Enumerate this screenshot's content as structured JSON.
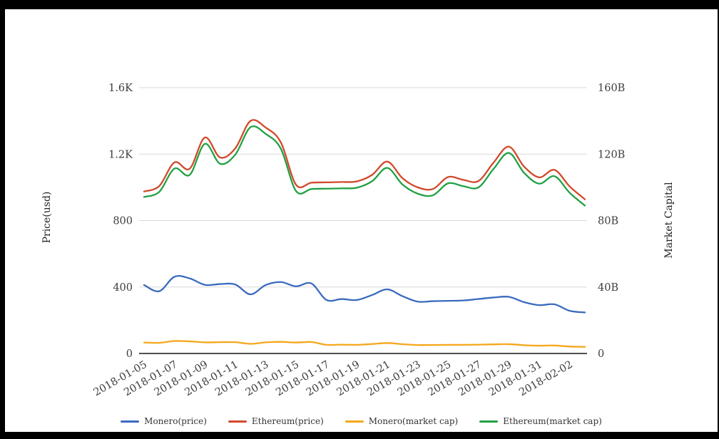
{
  "frame": {
    "background": "#000000",
    "canvas_background": "#ffffff"
  },
  "chart_data": {
    "type": "line",
    "title": "",
    "grid": true,
    "legend_position": "bottom",
    "x": [
      "2018-01-05",
      "2018-01-06",
      "2018-01-07",
      "2018-01-08",
      "2018-01-09",
      "2018-01-10",
      "2018-01-11",
      "2018-01-12",
      "2018-01-13",
      "2018-01-14",
      "2018-01-15",
      "2018-01-16",
      "2018-01-17",
      "2018-01-18",
      "2018-01-19",
      "2018-01-20",
      "2018-01-21",
      "2018-01-22",
      "2018-01-23",
      "2018-01-24",
      "2018-01-25",
      "2018-01-26",
      "2018-01-27",
      "2018-01-28",
      "2018-01-29",
      "2018-01-30",
      "2018-01-31",
      "2018-02-01",
      "2018-02-02",
      "2018-02-03"
    ],
    "x_tick_labels": [
      "2018-01-05",
      "2018-01-07",
      "2018-01-09",
      "2018-01-11",
      "2018-01-13",
      "2018-01-15",
      "2018-01-17",
      "2018-01-19",
      "2018-01-21",
      "2018-01-23",
      "2018-01-25",
      "2018-01-27",
      "2018-01-29",
      "2018-01-31",
      "2018-02-02"
    ],
    "x_label_every": 2,
    "left_axis": {
      "title": "Price(usd)",
      "range": [
        0,
        1600
      ],
      "ticks": [
        0,
        400,
        800,
        1200,
        1600
      ],
      "tick_labels": [
        "0",
        "400",
        "800",
        "1.2K",
        "1.6K"
      ]
    },
    "right_axis": {
      "title": "Market Capital",
      "range": [
        0,
        160
      ],
      "ticks": [
        0,
        40,
        80,
        120,
        160
      ],
      "tick_labels": [
        "0",
        "40B",
        "80B",
        "120B",
        "160B"
      ]
    },
    "series": [
      {
        "name": "Monero(price)",
        "axis": "left",
        "color": "#3b6abf",
        "values": [
          412,
          375,
          462,
          452,
          413,
          418,
          415,
          356,
          412,
          430,
          404,
          422,
          322,
          328,
          322,
          352,
          386,
          345,
          312,
          315,
          317,
          319,
          328,
          337,
          341,
          309,
          291,
          296,
          257,
          247
        ]
      },
      {
        "name": "Ethereum(price)",
        "axis": "left",
        "color": "#d1492a",
        "values": [
          975,
          1008,
          1150,
          1112,
          1300,
          1180,
          1235,
          1400,
          1360,
          1270,
          1015,
          1028,
          1030,
          1032,
          1036,
          1075,
          1155,
          1055,
          1000,
          990,
          1062,
          1045,
          1038,
          1150,
          1245,
          1125,
          1060,
          1105,
          1005,
          928
        ]
      },
      {
        "name": "Monero(market cap)",
        "axis": "right",
        "color": "#f6a71b",
        "values": [
          6.6,
          6.4,
          7.5,
          7.3,
          6.7,
          6.8,
          6.8,
          5.8,
          6.7,
          7.0,
          6.6,
          6.9,
          5.2,
          5.3,
          5.2,
          5.7,
          6.3,
          5.6,
          5.1,
          5.1,
          5.2,
          5.2,
          5.3,
          5.5,
          5.6,
          5.0,
          4.7,
          4.8,
          4.2,
          4.0
        ]
      },
      {
        "name": "Ethereum(market cap)",
        "axis": "right",
        "color": "#22a044",
        "values": [
          94.2,
          97.3,
          111.3,
          107.5,
          126.2,
          114.2,
          119.7,
          136.2,
          132.2,
          123.2,
          97.7,
          99.0,
          99.2,
          99.4,
          99.8,
          103.7,
          111.7,
          101.7,
          96.2,
          95.2,
          102.4,
          100.7,
          100.0,
          111.2,
          120.7,
          108.7,
          102.2,
          106.7,
          96.7,
          89.0
        ]
      }
    ],
    "colors": {
      "grid": "#d9d9d9",
      "axis_line": "#141414",
      "tick_label": "#3d3d3d",
      "axis_title": "#222222"
    }
  }
}
